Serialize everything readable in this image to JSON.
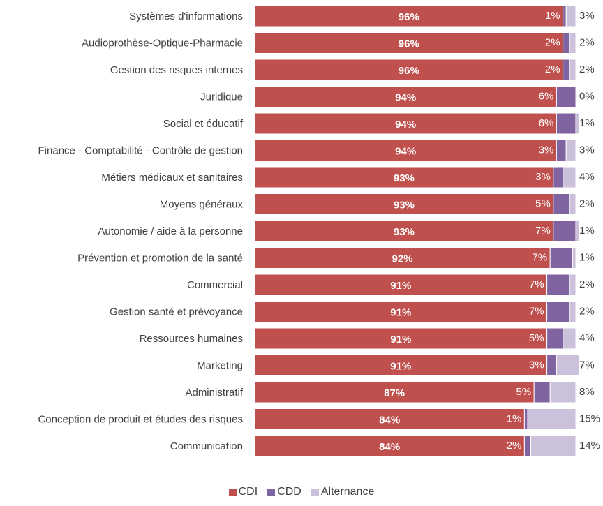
{
  "chart_data": {
    "type": "bar",
    "orientation": "horizontal",
    "stacked": true,
    "categories": [
      "Systèmes d'informations",
      "Audioprothèse-Optique-Pharmacie",
      "Gestion des risques internes",
      "Juridique",
      "Social et éducatif",
      "Finance - Comptabilité - Contrôle de gestion",
      "Métiers médicaux et sanitaires",
      "Moyens généraux",
      "Autonomie / aide à la personne",
      "Prévention et promotion de la santé",
      "Commercial",
      "Gestion santé et prévoyance",
      "Ressources humaines",
      "Marketing",
      "Administratif",
      "Conception de produit et études des risques",
      "Communication"
    ],
    "series": [
      {
        "name": "CDI",
        "color": "#c0504d",
        "values": [
          96,
          96,
          96,
          94,
          94,
          94,
          93,
          93,
          93,
          92,
          91,
          91,
          91,
          91,
          87,
          84,
          84
        ]
      },
      {
        "name": "CDD",
        "color": "#8064a2",
        "values": [
          1,
          2,
          2,
          6,
          6,
          3,
          3,
          5,
          7,
          7,
          7,
          7,
          5,
          3,
          5,
          1,
          2
        ]
      },
      {
        "name": "Alternance",
        "color": "#ccc1da",
        "values": [
          3,
          2,
          2,
          0,
          1,
          3,
          4,
          2,
          1,
          1,
          2,
          2,
          4,
          7,
          8,
          15,
          14
        ]
      }
    ],
    "value_suffix": "%",
    "title": "",
    "xlabel": "",
    "ylabel": "",
    "xlim": [
      0,
      100
    ],
    "grid": false,
    "legend_position": "bottom"
  }
}
